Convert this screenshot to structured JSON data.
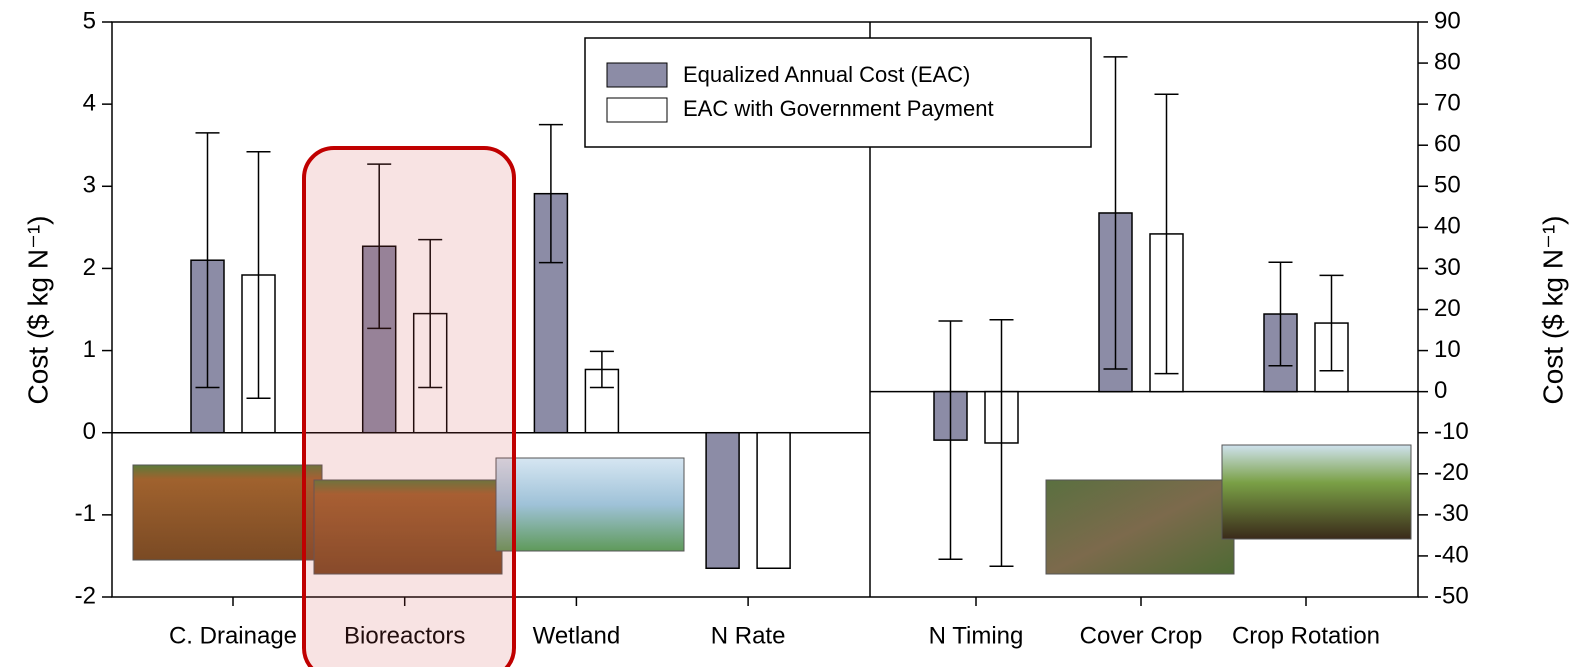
{
  "chart_data": [
    {
      "type": "bar",
      "ylabel": "Cost ($ kg N⁻¹)",
      "categories": [
        "C. Drainage",
        "Bioreactors",
        "Wetland",
        "N Rate"
      ],
      "series": [
        {
          "name": "Equalized Annual Cost (EAC)",
          "color": "#8c8ca6",
          "values": [
            2.1,
            2.27,
            2.91,
            -1.65
          ],
          "errors": [
            1.55,
            1.0,
            0.84,
            null
          ]
        },
        {
          "name": "EAC with Government Payment",
          "color": "#ffffff",
          "values": [
            1.92,
            1.45,
            0.77,
            -1.65
          ],
          "errors": [
            1.5,
            0.9,
            0.22,
            null
          ]
        }
      ],
      "ylim": [
        -2,
        5
      ],
      "yticks": [
        -2,
        -1,
        0,
        1,
        2,
        3,
        4,
        5
      ]
    },
    {
      "type": "bar",
      "y2label": "Cost ($ kg N⁻¹)",
      "categories": [
        "N Timing",
        "Cover Crop",
        "Crop Rotation"
      ],
      "series": [
        {
          "color": "#8c8ca6",
          "axis": "y2",
          "values": [
            -11.8,
            43.5,
            18.9
          ],
          "errors": [
            29,
            38,
            12.6
          ]
        },
        {
          "color": "#ffffff",
          "axis": "y2",
          "values": [
            -12.5,
            38.4,
            16.7
          ],
          "errors": [
            30,
            34,
            11.6
          ]
        }
      ],
      "y2lim": [
        -50,
        90
      ],
      "y2ticks": [
        -50,
        -40,
        -30,
        -20,
        -10,
        0,
        10,
        20,
        30,
        40,
        50,
        60,
        70,
        80,
        90
      ]
    }
  ]
}
